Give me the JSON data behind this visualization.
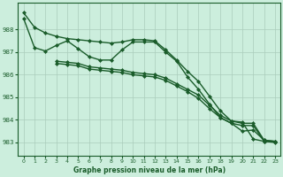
{
  "xlabel": "Graphe pression niveau de la mer (hPa)",
  "background_color": "#cceedd",
  "grid_color": "#aaccbb",
  "line_color": "#1a5c2a",
  "xlim": [
    -0.5,
    23.5
  ],
  "ylim": [
    982.4,
    989.2
  ],
  "yticks": [
    983,
    984,
    985,
    986,
    987,
    988
  ],
  "xticks": [
    0,
    1,
    2,
    3,
    4,
    5,
    6,
    7,
    8,
    9,
    10,
    11,
    12,
    13,
    14,
    15,
    16,
    17,
    18,
    19,
    20,
    21,
    22,
    23
  ],
  "series": [
    {
      "x": [
        0,
        1,
        2,
        3,
        4,
        5,
        6,
        7,
        8,
        9,
        10,
        11,
        12,
        13,
        14,
        15,
        16,
        17,
        18,
        19,
        20,
        21,
        22,
        23
      ],
      "y": [
        988.75,
        988.1,
        987.85,
        987.7,
        987.6,
        987.55,
        987.5,
        987.45,
        987.4,
        987.45,
        987.55,
        987.55,
        987.5,
        987.1,
        986.65,
        986.15,
        985.7,
        985.05,
        984.4,
        983.95,
        983.9,
        983.15,
        983.05,
        983.05
      ]
    },
    {
      "x": [
        0,
        1,
        2,
        3,
        4,
        5,
        6,
        7,
        8,
        9,
        10,
        11,
        12,
        13,
        14,
        15,
        16,
        17,
        18,
        19,
        20,
        21,
        22,
        23
      ],
      "y": [
        988.5,
        987.2,
        987.05,
        987.3,
        987.5,
        987.15,
        986.8,
        986.65,
        986.65,
        987.1,
        987.45,
        987.45,
        987.45,
        987.0,
        986.6,
        985.9,
        985.35,
        984.7,
        984.1,
        983.85,
        983.5,
        983.55,
        983.1,
        983.05
      ]
    },
    {
      "x": [
        3,
        4,
        5,
        6,
        7,
        8,
        9,
        10,
        11,
        12,
        13,
        14,
        15,
        16,
        17,
        18,
        19,
        20,
        21,
        22,
        23
      ],
      "y": [
        986.6,
        986.55,
        986.5,
        986.35,
        986.3,
        986.25,
        986.2,
        986.1,
        986.05,
        986.0,
        985.85,
        985.6,
        985.35,
        985.1,
        984.65,
        984.2,
        983.95,
        983.85,
        983.85,
        983.1,
        983.05
      ]
    },
    {
      "x": [
        3,
        4,
        5,
        6,
        7,
        8,
        9,
        10,
        11,
        12,
        13,
        14,
        15,
        16,
        17,
        18,
        19,
        20,
        21,
        22,
        23
      ],
      "y": [
        986.5,
        986.45,
        986.4,
        986.25,
        986.2,
        986.15,
        986.1,
        986.0,
        985.95,
        985.9,
        985.75,
        985.5,
        985.25,
        984.95,
        984.5,
        984.1,
        983.85,
        983.75,
        983.75,
        983.05,
        983.0
      ]
    }
  ],
  "marker": "D",
  "markersize": 2,
  "linewidth": 1.0
}
